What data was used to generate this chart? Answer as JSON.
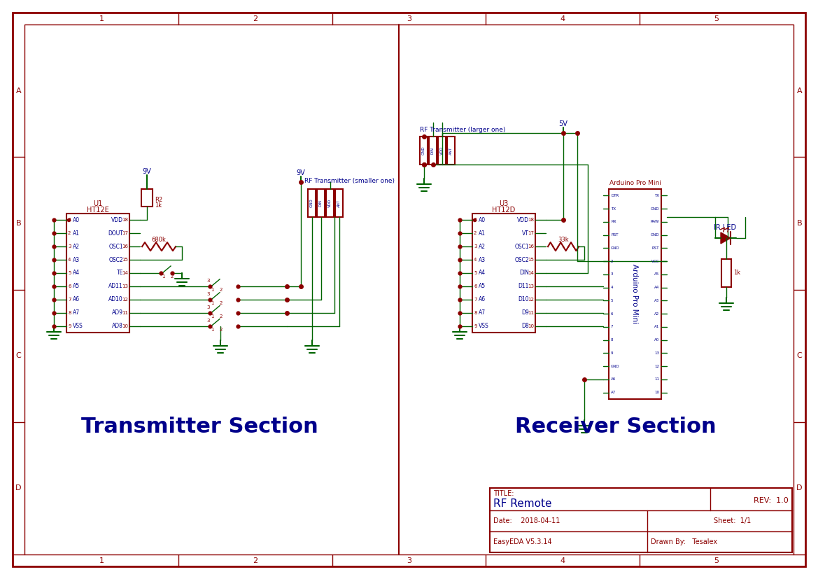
{
  "bg_color": "#ffffff",
  "border_color": "#8b0000",
  "schematic_line_color": "#006400",
  "component_color": "#8b0000",
  "label_color_blue": "#00008b",
  "label_color_red": "#8b0000",
  "title": "RF Remote",
  "rev": "REV:  1.0",
  "date": "Date:    2018-04-11",
  "sheet": "Sheet:  1/1",
  "software": "EasyEDA V5.3.14",
  "drawn_by": "Drawn By:   Tesalex",
  "title_label": "TITLE:",
  "section_left": "Transmitter Section",
  "section_right": "Receiver Section"
}
